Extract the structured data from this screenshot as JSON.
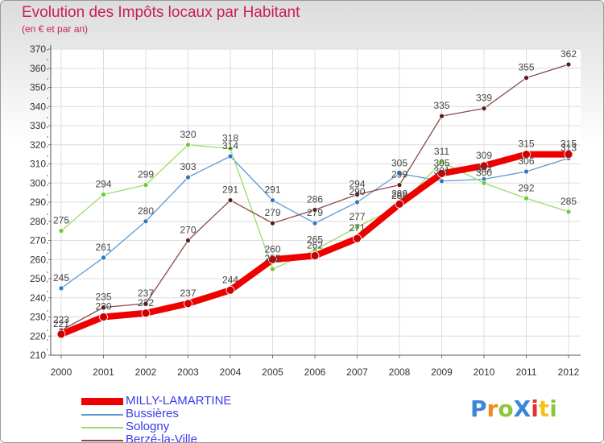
{
  "header": {
    "title": "Evolution des Impôts locaux par Habitant",
    "subtitle": "(en € et par an)"
  },
  "logo": {
    "text": "ProXiti"
  },
  "chart_data": {
    "type": "line",
    "title": "Evolution des Impôts locaux par Habitant",
    "subtitle": "(en € et par an)",
    "xlabel": "",
    "ylabel": "",
    "ylim": [
      210,
      370
    ],
    "yticks": [
      210,
      220,
      230,
      240,
      250,
      260,
      270,
      280,
      290,
      300,
      310,
      320,
      330,
      340,
      350,
      360,
      370
    ],
    "grid": true,
    "legend_position": "bottom-left",
    "x": [
      "2000",
      "2001",
      "2002",
      "2003",
      "2004",
      "2005",
      "2006",
      "2007",
      "2008",
      "2009",
      "2010",
      "2011",
      "2012"
    ],
    "series": [
      {
        "name": "Bussières",
        "color": "#5b9bd5",
        "marker": "#2f78c4",
        "values": [
          245,
          261,
          280,
          303,
          314,
          291,
          279,
          290,
          305,
          301,
          302,
          306,
          313
        ]
      },
      {
        "name": "Sologny",
        "color": "#9bdc6a",
        "marker": "#6ccb34",
        "values": [
          275,
          294,
          299,
          320,
          318,
          255,
          265,
          277,
          288,
          311,
          300,
          292,
          285
        ]
      },
      {
        "name": "Berzé-la-Ville",
        "color": "#8b4a4a",
        "marker": "#5a1a1a",
        "values": [
          223,
          235,
          237,
          270,
          291,
          279,
          286,
          294,
          299,
          335,
          339,
          355,
          362
        ]
      },
      {
        "name": "MILLY-LAMARTINE",
        "color": "#ee0000",
        "marker": "#cc0000",
        "values": [
          221,
          230,
          232,
          237,
          244,
          260,
          262,
          271,
          289,
          305,
          309,
          315,
          315
        ]
      }
    ]
  }
}
